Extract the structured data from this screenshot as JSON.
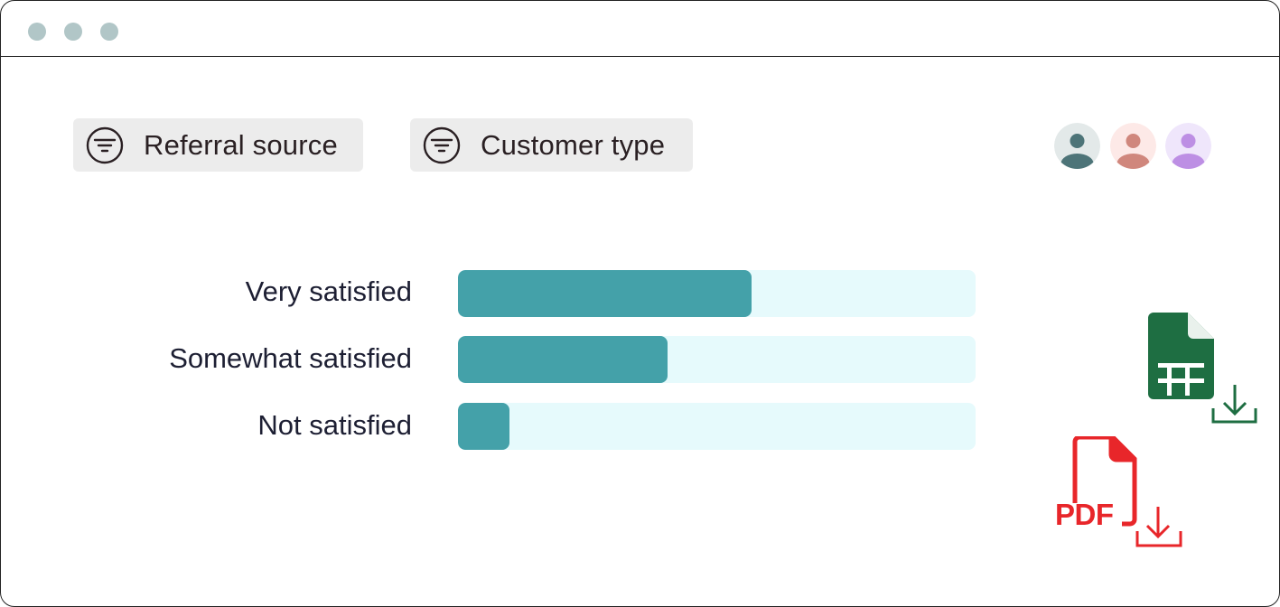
{
  "window": {
    "controls": [
      "window-dot-1",
      "window-dot-2",
      "window-dot-3"
    ]
  },
  "filters": [
    {
      "label": "Referral source",
      "icon": "filter-icon"
    },
    {
      "label": "Customer type",
      "icon": "filter-icon"
    }
  ],
  "avatars": [
    {
      "icon": "user-avatar-icon",
      "bg": "#e3e9e9",
      "fg": "#4d7478"
    },
    {
      "icon": "user-avatar-icon",
      "bg": "#fde9e7",
      "fg": "#d0877d"
    },
    {
      "icon": "user-avatar-icon",
      "bg": "#efe6fb",
      "fg": "#bd8fe4"
    }
  ],
  "rows": [
    {
      "label": "Very satisfied",
      "value": 0.567
    },
    {
      "label": "Somewhat satisfied",
      "value": 0.405
    },
    {
      "label": "Not satisfied",
      "value": 0.1
    }
  ],
  "colors": {
    "bar_fill": "#44a1a9",
    "bar_track": "#e6fafc",
    "sheet_green": "#1e6e42",
    "pdf_red": "#e8262a"
  },
  "exports": {
    "spreadsheet": {
      "icon": "spreadsheet-download-icon"
    },
    "pdf": {
      "icon": "pdf-download-icon",
      "label": "PDF"
    }
  }
}
